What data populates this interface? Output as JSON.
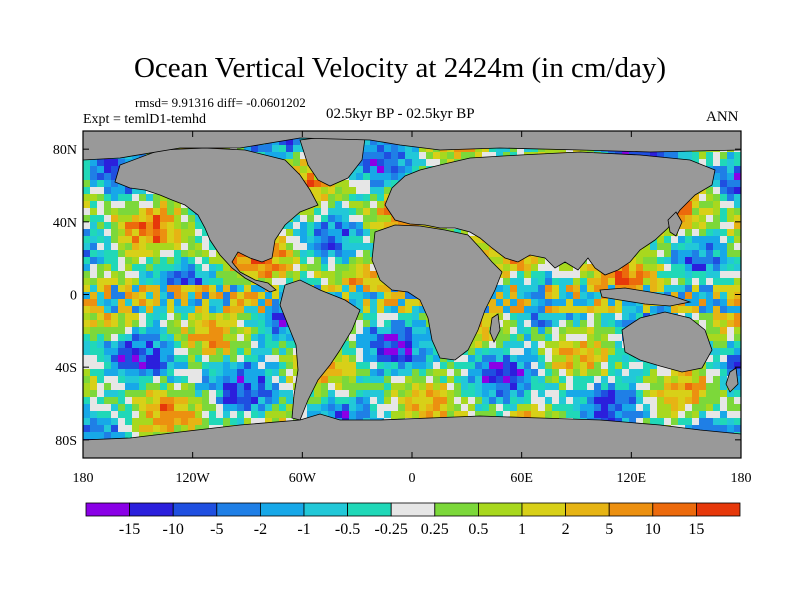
{
  "title": "Ocean Vertical Velocity at 2424m (in cm/day)",
  "stats": "rmsd= 9.91316 diff= -0.0601202",
  "expt": "Expt = temlD1-temhd",
  "period": "02.5kyr BP - 02.5kyr BP",
  "season": "ANN",
  "map": {
    "lat_range": [
      -90,
      90
    ],
    "lon_range": [
      -180,
      180
    ],
    "land_color": "#999999",
    "lat_ticks": [
      {
        "value": 80,
        "label": "80N"
      },
      {
        "value": 40,
        "label": "40N"
      },
      {
        "value": 0,
        "label": "0"
      },
      {
        "value": -40,
        "label": "40S"
      },
      {
        "value": -80,
        "label": "80S"
      }
    ],
    "lon_ticks": [
      {
        "value": -180,
        "label": "180"
      },
      {
        "value": -120,
        "label": "120W"
      },
      {
        "value": -60,
        "label": "60W"
      },
      {
        "value": 0,
        "label": "0"
      },
      {
        "value": 60,
        "label": "60E"
      },
      {
        "value": 120,
        "label": "120E"
      },
      {
        "value": 180,
        "label": "180"
      }
    ]
  },
  "colorbar": {
    "colors": [
      "#8a00e6",
      "#2b1fdc",
      "#1f4fe0",
      "#1f7fe6",
      "#17a8e8",
      "#22c8d8",
      "#20d8b8",
      "#e6e6e6",
      "#7cd83a",
      "#a8d81e",
      "#d8d018",
      "#e6b414",
      "#ec9010",
      "#ec6a0c",
      "#e6380a"
    ],
    "labels": [
      "-15",
      "-10",
      "-5",
      "-2",
      "-1",
      "-0.5",
      "-0.25",
      "0.25",
      "0.5",
      "1",
      "2",
      "5",
      "10",
      "15"
    ]
  }
}
